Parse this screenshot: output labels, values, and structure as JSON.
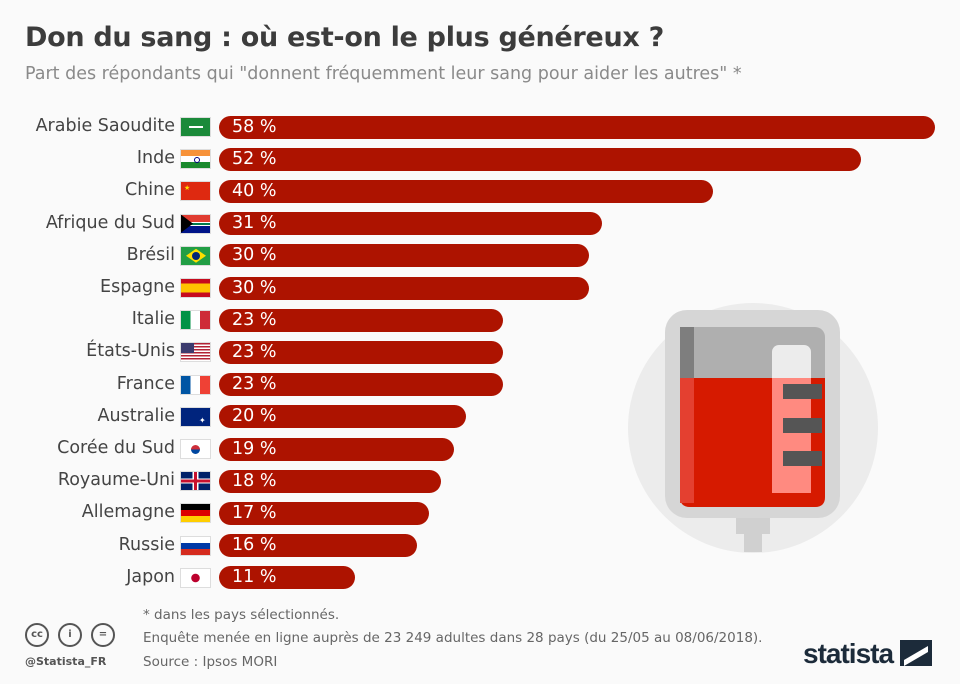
{
  "chart_data": {
    "type": "bar",
    "orientation": "horizontal",
    "title": "Don du sang : où est-on le plus généreux ?",
    "subtitle": "Part des répondants qui \"donnent fréquemment leur sang pour aider les autres\" *",
    "categories": [
      "Arabie Saoudite",
      "Inde",
      "Chine",
      "Afrique du Sud",
      "Brésil",
      "Espagne",
      "Italie",
      "États-Unis",
      "France",
      "Australie",
      "Corée du Sud",
      "Royaume-Uni",
      "Allemagne",
      "Russie",
      "Japon"
    ],
    "values": [
      58,
      52,
      40,
      31,
      30,
      30,
      23,
      23,
      23,
      20,
      19,
      18,
      17,
      16,
      11
    ],
    "labels": [
      "58 %",
      "52 %",
      "40 %",
      "31 %",
      "30 %",
      "30 %",
      "23 %",
      "23 %",
      "23 %",
      "20 %",
      "19 %",
      "18 %",
      "17 %",
      "16 %",
      "11 %"
    ],
    "flag_icons": [
      "flag-saudi-arabia",
      "flag-india",
      "flag-china",
      "flag-south-africa",
      "flag-brazil",
      "flag-spain",
      "flag-italy",
      "flag-usa",
      "flag-france",
      "flag-australia",
      "flag-south-korea",
      "flag-uk",
      "flag-germany",
      "flag-russia",
      "flag-japan"
    ],
    "bar_color": "#ad1300",
    "xlim": [
      0,
      58
    ]
  },
  "footer": {
    "note": "* dans les pays sélectionnés.",
    "survey": "Enquête menée en ligne auprès de 23 249 adultes dans 28 pays (du 25/05 au 08/06/2018).",
    "source": "Source : Ipsos MORI",
    "handle": "@Statista_FR",
    "logo": "statista",
    "license_icons": [
      "cc-icon",
      "attribution-icon",
      "no-derivatives-icon"
    ]
  }
}
